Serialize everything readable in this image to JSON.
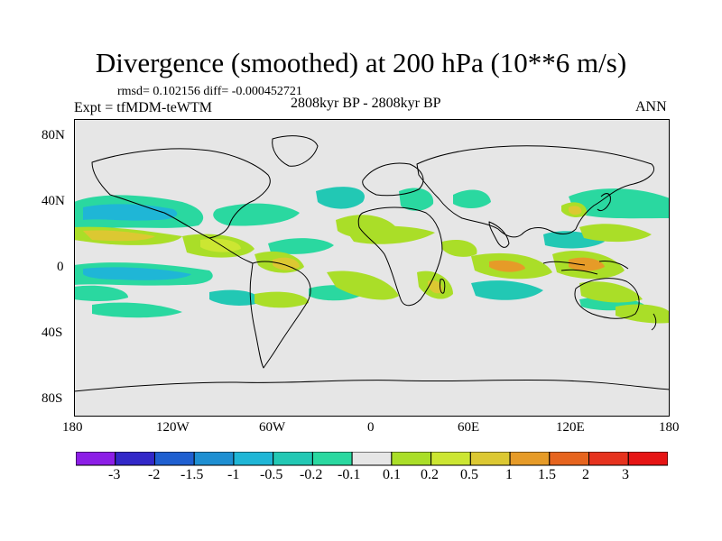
{
  "title": "Divergence (smoothed) at 200 hPa (10**6 m/s)",
  "stats": "rmsd= 0.102156  diff= -0.000452721",
  "experiment": "Expt = tfMDM-teWTM",
  "period": "2808kyr BP - 2808kyr BP",
  "season": "ANN",
  "lat_labels": [
    "80N",
    "40N",
    "0",
    "40S",
    "80S"
  ],
  "lon_labels": [
    "180",
    "120W",
    "60W",
    "0",
    "60E",
    "120E",
    "180"
  ],
  "colorbar": {
    "labels": [
      "-3",
      "-2",
      "-1.5",
      "-1",
      "-0.5",
      "-0.2",
      "-0.1",
      "0.1",
      "0.2",
      "0.5",
      "1",
      "1.5",
      "2",
      "3"
    ],
    "colors": [
      "#8c1ee6",
      "#3228c8",
      "#1f5fd0",
      "#1e8fd2",
      "#1fb6d6",
      "#22c8b4",
      "#2ad8a0",
      "#e6e6e6",
      "#aade28",
      "#cce632",
      "#dcc832",
      "#e69b28",
      "#e6641e",
      "#e6321e",
      "#e61414"
    ]
  },
  "map_colors": {
    "background": "#e6e6e6",
    "neg_light": "#2ad8a0",
    "neg_mid": "#22c8b4",
    "neg_strong": "#1fb6d6",
    "pos_light": "#aade28",
    "pos_mid": "#cce632",
    "pos_strong": "#dcc832",
    "pos_peak": "#e69b28"
  }
}
